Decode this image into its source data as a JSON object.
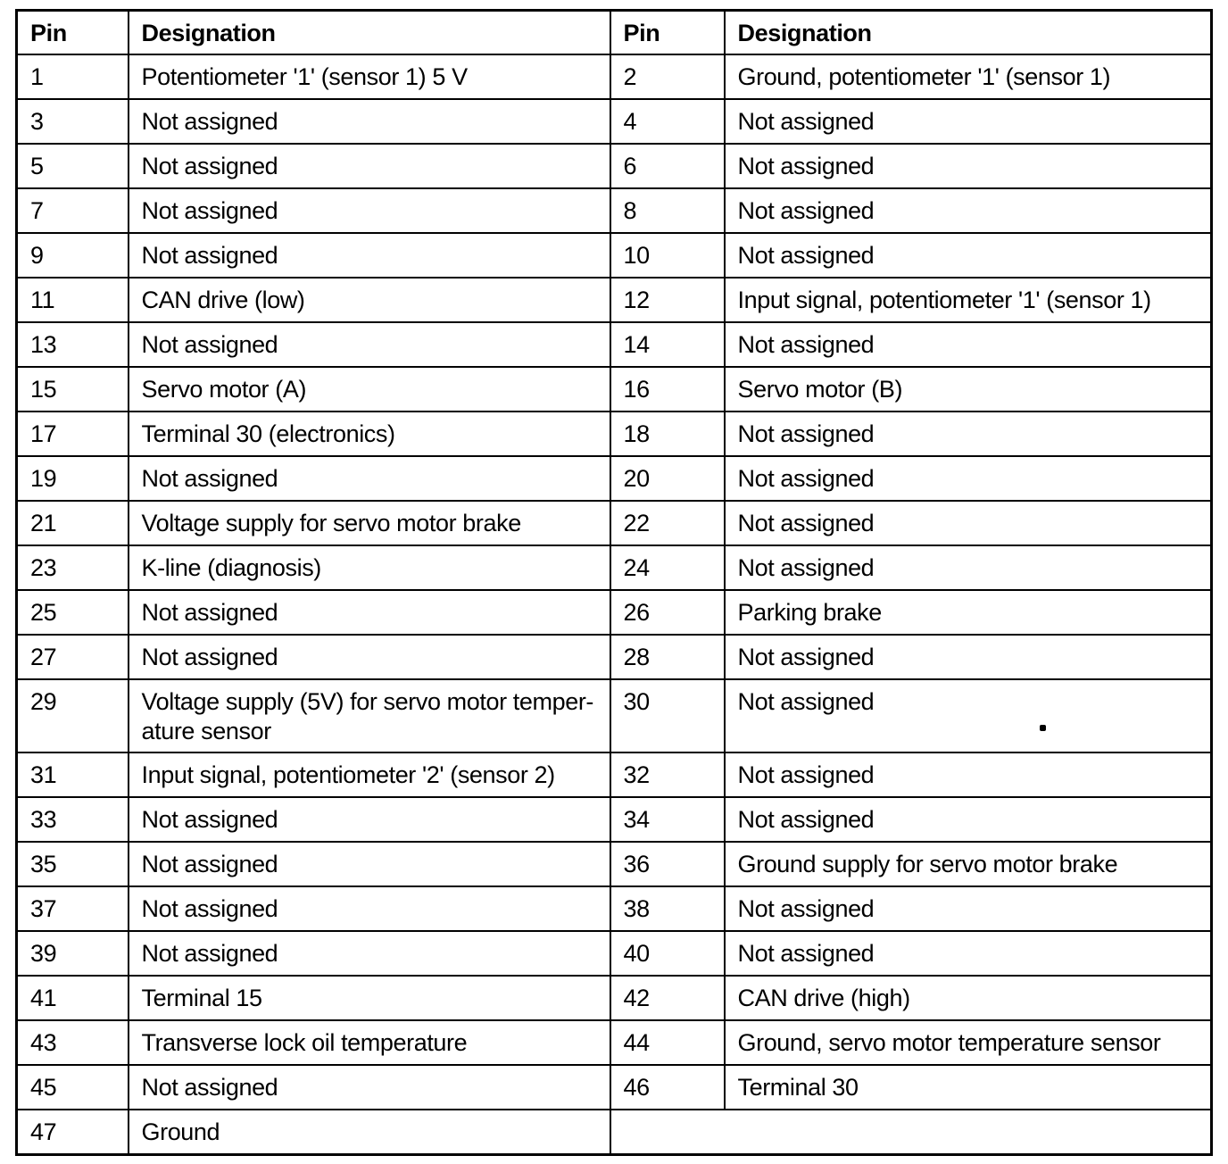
{
  "document": {
    "type": "pin-assignment-table",
    "colors": {
      "background": "#ffffff",
      "border": "#000000",
      "text": "#000000"
    }
  },
  "table": {
    "headers": [
      "Pin",
      "Designation",
      "Pin",
      "Designation"
    ],
    "rows": [
      {
        "pin_left": "1",
        "des_left": "Potentiometer '1' (sensor 1) 5 V",
        "pin_right": "2",
        "des_right": "Ground, potentiometer '1' (sensor 1)"
      },
      {
        "pin_left": "3",
        "des_left": "Not assigned",
        "pin_right": "4",
        "des_right": "Not assigned"
      },
      {
        "pin_left": "5",
        "des_left": "Not assigned",
        "pin_right": "6",
        "des_right": "Not assigned"
      },
      {
        "pin_left": "7",
        "des_left": "Not assigned",
        "pin_right": "8",
        "des_right": "Not assigned"
      },
      {
        "pin_left": "9",
        "des_left": "Not assigned",
        "pin_right": "10",
        "des_right": "Not assigned"
      },
      {
        "pin_left": "11",
        "des_left": "CAN drive (low)",
        "pin_right": "12",
        "des_right": "Input signal, potentiometer '1' (sensor 1)"
      },
      {
        "pin_left": "13",
        "des_left": "Not assigned",
        "pin_right": "14",
        "des_right": "Not assigned"
      },
      {
        "pin_left": "15",
        "des_left": "Servo motor (A)",
        "pin_right": "16",
        "des_right": "Servo motor (B)"
      },
      {
        "pin_left": "17",
        "des_left": "Terminal 30 (electronics)",
        "pin_right": "18",
        "des_right": "Not assigned"
      },
      {
        "pin_left": "19",
        "des_left": "Not assigned",
        "pin_right": "20",
        "des_right": "Not assigned"
      },
      {
        "pin_left": "21",
        "des_left": "Voltage supply for servo motor brake",
        "pin_right": "22",
        "des_right": "Not assigned"
      },
      {
        "pin_left": "23",
        "des_left": "K-line (diagnosis)",
        "pin_right": "24",
        "des_right": "Not assigned"
      },
      {
        "pin_left": "25",
        "des_left": "Not assigned",
        "pin_right": "26",
        "des_right": "Parking brake"
      },
      {
        "pin_left": "27",
        "des_left": "Not assigned",
        "pin_right": "28",
        "des_right": "Not assigned"
      },
      {
        "pin_left": "29",
        "des_left": "Voltage supply (5V) for servo motor temper-\nature sensor",
        "pin_right": "30",
        "des_right": "Not assigned",
        "dot_artifact": true
      },
      {
        "pin_left": "31",
        "des_left": "Input signal, potentiometer '2' (sensor 2)",
        "pin_right": "32",
        "des_right": "Not assigned"
      },
      {
        "pin_left": "33",
        "des_left": "Not assigned",
        "pin_right": "34",
        "des_right": "Not assigned"
      },
      {
        "pin_left": "35",
        "des_left": "Not assigned",
        "pin_right": "36",
        "des_right": "Ground supply for servo motor brake"
      },
      {
        "pin_left": "37",
        "des_left": "Not assigned",
        "pin_right": "38",
        "des_right": "Not assigned"
      },
      {
        "pin_left": "39",
        "des_left": "Not assigned",
        "pin_right": "40",
        "des_right": "Not assigned"
      },
      {
        "pin_left": "41",
        "des_left": "Terminal 15",
        "pin_right": "42",
        "des_right": "CAN drive (high)"
      },
      {
        "pin_left": "43",
        "des_left": "Transverse lock oil temperature",
        "pin_right": "44",
        "des_right": "Ground, servo motor temperature sensor"
      },
      {
        "pin_left": "45",
        "des_left": "Not assigned",
        "pin_right": "46",
        "des_right": "Terminal 30"
      },
      {
        "pin_left": "47",
        "des_left": "Ground",
        "right_merged_empty": true
      }
    ]
  }
}
